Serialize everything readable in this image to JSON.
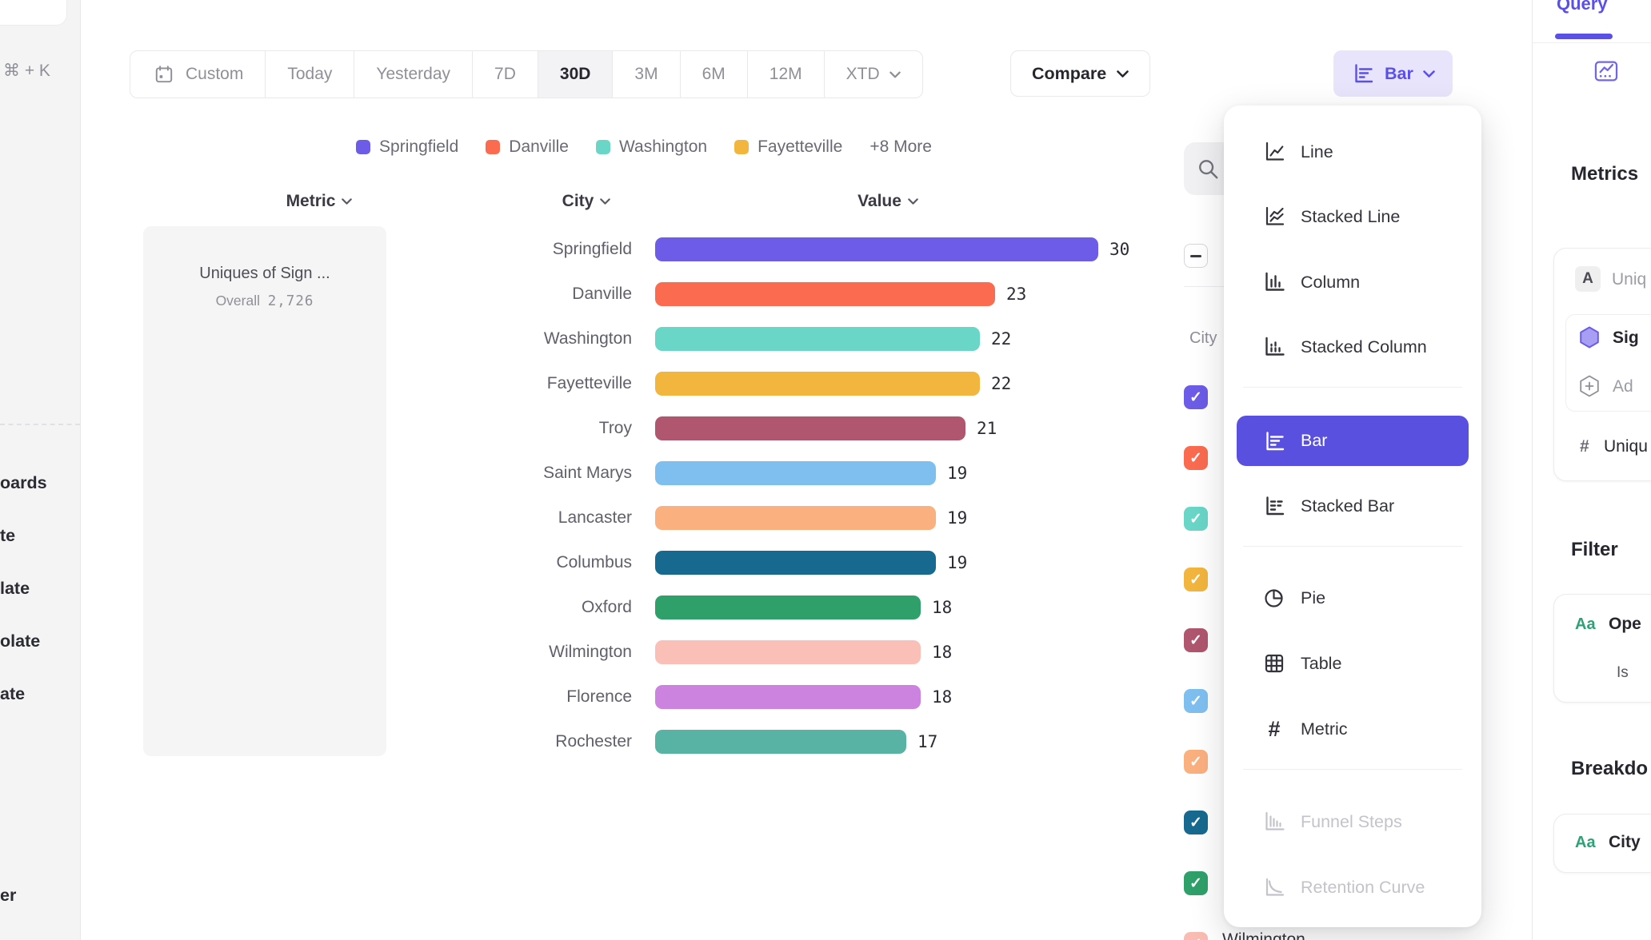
{
  "sidebar": {
    "shortcut": "⌘ + K",
    "fragments": [
      "oards",
      "te",
      "late",
      "olate",
      "ate",
      "er"
    ]
  },
  "toolbar": {
    "ranges": [
      "Custom",
      "Today",
      "Yesterday",
      "7D",
      "30D",
      "3M",
      "6M",
      "12M",
      "XTD"
    ],
    "selected_range": "30D",
    "compare_label": "Compare",
    "chart_type_label": "Bar"
  },
  "legend": {
    "items": [
      {
        "label": "Springfield",
        "color": "#6C5CE7"
      },
      {
        "label": "Danville",
        "color": "#FA6B50"
      },
      {
        "label": "Washington",
        "color": "#69D6C8"
      },
      {
        "label": "Fayetteville",
        "color": "#F2B53D"
      }
    ],
    "more_label": "+8 More"
  },
  "table_headers": {
    "metric": "Metric",
    "city": "City",
    "value": "Value"
  },
  "metric_panel": {
    "title": "Uniques of Sign ...",
    "overall_label": "Overall",
    "overall_value": "2,726"
  },
  "chart_data": {
    "type": "bar",
    "orientation": "horizontal",
    "series_name": "Uniques of Sign ...",
    "categories": [
      "Springfield",
      "Danville",
      "Washington",
      "Fayetteville",
      "Troy",
      "Saint Marys",
      "Lancaster",
      "Columbus",
      "Oxford",
      "Wilmington",
      "Florence",
      "Rochester"
    ],
    "values": [
      30,
      23,
      22,
      22,
      21,
      19,
      19,
      19,
      18,
      18,
      18,
      17
    ],
    "colors": [
      "#6C5CE7",
      "#FA6B50",
      "#69D6C8",
      "#F2B53D",
      "#B0566E",
      "#7FBFF0",
      "#FBB07F",
      "#17698F",
      "#2FA06A",
      "#FAC0B7",
      "#CC82DF",
      "#58B3A4"
    ],
    "value_axis_max": 30,
    "overall_total": "2,726"
  },
  "breakdown_list": {
    "section_label": "City",
    "select_all_state": "indeterminate",
    "visible_item_label": "Wilmington",
    "checkbox_colors": [
      "#6C5CE7",
      "#FA6B50",
      "#69D6C8",
      "#F2B53D",
      "#B0566E",
      "#7FBFF0",
      "#FBB07F",
      "#17698F",
      "#2FA06A",
      "#F9BCB2"
    ],
    "checkmark": "✓"
  },
  "chart_menu": {
    "items": [
      {
        "label": "Line",
        "state": "normal"
      },
      {
        "label": "Stacked Line",
        "state": "normal"
      },
      {
        "label": "Column",
        "state": "normal"
      },
      {
        "label": "Stacked Column",
        "state": "normal"
      },
      {
        "label": "Bar",
        "state": "selected"
      },
      {
        "label": "Stacked Bar",
        "state": "normal"
      },
      {
        "label": "Pie",
        "state": "normal"
      },
      {
        "label": "Table",
        "state": "normal"
      },
      {
        "label": "Metric",
        "state": "normal"
      },
      {
        "label": "Funnel Steps",
        "state": "disabled"
      },
      {
        "label": "Retention Curve",
        "state": "disabled"
      }
    ]
  },
  "query_panel": {
    "tab_label": "Query",
    "metrics_heading": "Metrics",
    "metric_badge": "A",
    "metric_name_fragment": "Uniq",
    "event_fragment": "Sig",
    "add_fragment": "Ad",
    "hash_symbol": "#",
    "unique_fragment": "Uniqu",
    "filter_heading": "Filter",
    "aa_label": "Aa",
    "filter_property_fragment": "Ope",
    "filter_operator": "Is",
    "filter_value_fragment": "i",
    "breakdown_heading": "Breakdo",
    "breakdown_property": "City"
  },
  "colors": {
    "accent": "#5A50E0",
    "accent_light": "#E7E4FB",
    "aa_green": "#2FA077"
  }
}
